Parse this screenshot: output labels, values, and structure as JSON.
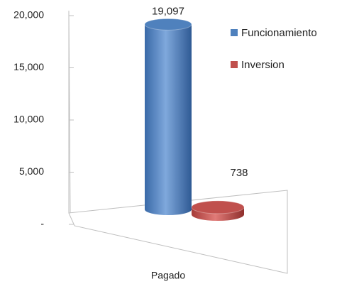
{
  "chart_data": {
    "type": "cylinder",
    "categories": [
      "Pagado"
    ],
    "series": [
      {
        "name": "Funcionamiento",
        "color": "#4f81bd",
        "values": [
          19097
        ],
        "value_labels": [
          "19,097"
        ]
      },
      {
        "name": "Inversion",
        "color": "#c0504d",
        "values": [
          738
        ],
        "value_labels": [
          "738"
        ]
      }
    ],
    "ylim": [
      0,
      20000
    ],
    "yticks": [
      {
        "value": 0,
        "label": "-"
      },
      {
        "value": 5000,
        "label": "5,000"
      },
      {
        "value": 10000,
        "label": "10,000"
      },
      {
        "value": 15000,
        "label": "15,000"
      },
      {
        "value": 20000,
        "label": "20,000"
      }
    ],
    "legend": "right"
  }
}
